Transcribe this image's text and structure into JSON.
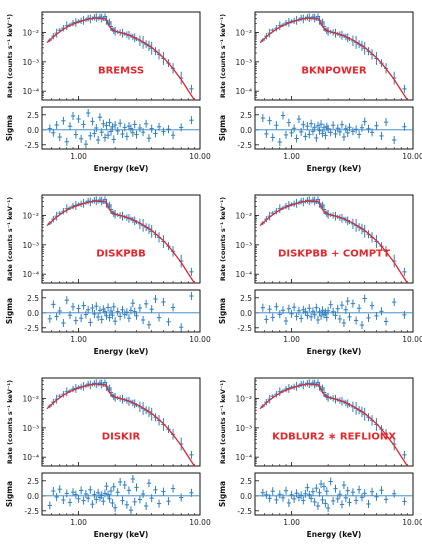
{
  "chart_data": [
    {
      "panel": 1,
      "type": "scatter",
      "model_label": "BREMSS",
      "xlabel": "Energy (keV)",
      "ylabel": "Rate (counts s⁻¹ keV⁻¹)",
      "resid_ylabel": "Sigma",
      "xscale": "log",
      "yscale": "log",
      "xlim": [
        0.5,
        10
      ],
      "ylim": [
        5e-05,
        0.05
      ],
      "resid_ylim": [
        -3.2,
        3.8
      ],
      "x_ticks": [
        "1.00",
        "10.00"
      ],
      "y_ticks": [
        "10⁻²",
        "10⁻³",
        "10⁻⁴"
      ],
      "resid_ticks": [
        "2.5",
        "0.0",
        "-2.5"
      ]
    },
    {
      "panel": 2,
      "type": "scatter",
      "model_label": "BKNPOWER",
      "xlabel": "Energy (keV)",
      "ylabel": "Rate (counts s⁻¹ keV⁻¹)",
      "resid_ylabel": "Sigma",
      "xscale": "log",
      "yscale": "log",
      "xlim": [
        0.5,
        10
      ],
      "ylim": [
        5e-05,
        0.05
      ],
      "resid_ylim": [
        -3.2,
        3.8
      ],
      "x_ticks": [
        "1.00",
        "10.00"
      ],
      "y_ticks": [
        "10⁻²",
        "10⁻³",
        "10⁻⁴"
      ],
      "resid_ticks": [
        "2.5",
        "0.0",
        "-2.5"
      ]
    },
    {
      "panel": 3,
      "type": "scatter",
      "model_label": "DISKPBB",
      "xlabel": "Energy (keV)",
      "ylabel": "Rate (counts s⁻¹ keV⁻¹)",
      "resid_ylabel": "Sigma",
      "xscale": "log",
      "yscale": "log",
      "xlim": [
        0.5,
        10
      ],
      "ylim": [
        5e-05,
        0.05
      ],
      "resid_ylim": [
        -3.2,
        3.8
      ],
      "x_ticks": [
        "1.00",
        "10.00"
      ],
      "y_ticks": [
        "10⁻²",
        "10⁻³",
        "10⁻⁴"
      ],
      "resid_ticks": [
        "2.5",
        "0.0",
        "-2.5"
      ]
    },
    {
      "panel": 4,
      "type": "scatter",
      "model_label": "DISKPBB + COMPTT",
      "xlabel": "Energy (keV)",
      "ylabel": "Rate (counts s⁻¹ keV⁻¹)",
      "resid_ylabel": "Sigma",
      "xscale": "log",
      "yscale": "log",
      "xlim": [
        0.5,
        10
      ],
      "ylim": [
        5e-05,
        0.05
      ],
      "resid_ylim": [
        -3.2,
        3.8
      ],
      "x_ticks": [
        "1.00",
        "10.00"
      ],
      "y_ticks": [
        "10⁻²",
        "10⁻³",
        "10⁻⁴"
      ],
      "resid_ticks": [
        "2.5",
        "0.0",
        "-2.5"
      ]
    },
    {
      "panel": 5,
      "type": "scatter",
      "model_label": "DISKIR",
      "xlabel": "Energy (keV)",
      "ylabel": "Rate (counts s⁻¹ keV⁻¹)",
      "resid_ylabel": "Sigma",
      "xscale": "log",
      "yscale": "log",
      "xlim": [
        0.5,
        10
      ],
      "ylim": [
        5e-05,
        0.05
      ],
      "resid_ylim": [
        -3.2,
        3.8
      ],
      "x_ticks": [
        "1.00",
        "10.00"
      ],
      "y_ticks": [
        "10⁻²",
        "10⁻³",
        "10⁻⁴"
      ],
      "resid_ticks": [
        "2.5",
        "0.0",
        "-2.5"
      ]
    },
    {
      "panel": 6,
      "type": "scatter",
      "model_label": "KDBLUR2 ∗ REFLIONX",
      "xlabel": "Energy (keV)",
      "ylabel": "Rate (counts s⁻¹ keV⁻¹)",
      "resid_ylabel": "Sigma",
      "xscale": "log",
      "yscale": "log",
      "xlim": [
        0.5,
        10
      ],
      "ylim": [
        5e-05,
        0.05
      ],
      "resid_ylim": [
        -3.2,
        3.8
      ],
      "x_ticks": [
        "1.00",
        "10.00"
      ],
      "y_ticks": [
        "10⁻²",
        "10⁻³",
        "10⁻⁴"
      ],
      "resid_ticks": [
        "2.5",
        "0.0",
        "-2.5"
      ]
    }
  ],
  "spectrum": {
    "energy_keV": [
      0.58,
      0.62,
      0.66,
      0.7,
      0.75,
      0.8,
      0.85,
      0.9,
      0.95,
      1.0,
      1.05,
      1.1,
      1.15,
      1.2,
      1.25,
      1.3,
      1.35,
      1.4,
      1.45,
      1.5,
      1.55,
      1.6,
      1.65,
      1.7,
      1.75,
      1.8,
      1.85,
      1.9,
      1.95,
      2.0,
      2.1,
      2.2,
      2.3,
      2.4,
      2.5,
      2.6,
      2.7,
      2.8,
      2.9,
      3.0,
      3.2,
      3.4,
      3.6,
      3.8,
      4.0,
      4.3,
      4.6,
      5.0,
      5.5,
      6.0,
      7.0,
      8.5
    ],
    "rate": [
      0.0055,
      0.0075,
      0.0095,
      0.012,
      0.014,
      0.017,
      0.018,
      0.021,
      0.022,
      0.024,
      0.025,
      0.026,
      0.027,
      0.031,
      0.029,
      0.03,
      0.033,
      0.032,
      0.03,
      0.034,
      0.031,
      0.029,
      0.035,
      0.026,
      0.02,
      0.023,
      0.016,
      0.0125,
      0.0115,
      0.011,
      0.0105,
      0.01,
      0.0095,
      0.009,
      0.0085,
      0.008,
      0.0078,
      0.007,
      0.0066,
      0.006,
      0.0052,
      0.0046,
      0.004,
      0.0035,
      0.0029,
      0.0023,
      0.0018,
      0.0013,
      0.0009,
      0.0006,
      0.00028,
      0.00012
    ],
    "model_energy_keV": [
      0.55,
      0.65,
      0.75,
      0.85,
      0.95,
      1.05,
      1.15,
      1.25,
      1.35,
      1.45,
      1.55,
      1.62,
      1.68,
      1.75,
      1.82,
      1.9,
      2.0,
      2.2,
      2.5,
      2.8,
      3.2,
      3.6,
      4.0,
      4.6,
      5.0,
      5.5,
      6.0,
      7.0,
      8.0,
      9.0
    ],
    "model_rate": [
      0.0045,
      0.0085,
      0.013,
      0.0175,
      0.021,
      0.024,
      0.027,
      0.029,
      0.031,
      0.031,
      0.03,
      0.03,
      0.029,
      0.02,
      0.015,
      0.0125,
      0.0112,
      0.01,
      0.0086,
      0.0072,
      0.0055,
      0.0041,
      0.0031,
      0.0019,
      0.0014,
      0.0009,
      0.00058,
      0.00025,
      0.000105,
      4e-05
    ],
    "residual_sigma": [
      0.2,
      -0.5,
      0.8,
      -1.2,
      1.5,
      -2.0,
      0.6,
      2.3,
      -0.8,
      1.8,
      -1.5,
      0.9,
      -2.4,
      2.8,
      -1.0,
      1.4,
      -0.6,
      0.3,
      -1.7,
      2.1,
      -0.4,
      1.0,
      -1.3,
      0.7,
      -0.9,
      1.2,
      -0.3,
      0.5,
      -1.6,
      0.8,
      -0.2,
      1.1,
      -0.7,
      0.4,
      -1.1,
      0.6,
      0.2,
      -0.5,
      0.9,
      -0.8,
      0.3,
      -0.4,
      1.0,
      -1.4,
      0.2,
      -0.6,
      0.5,
      -0.3,
      0.1,
      -0.9,
      0.4,
      1.6
    ]
  },
  "colors": {
    "data": "#2f7fc1",
    "model": "#e8262a",
    "axis": "#111111",
    "label": "#e8262a"
  }
}
